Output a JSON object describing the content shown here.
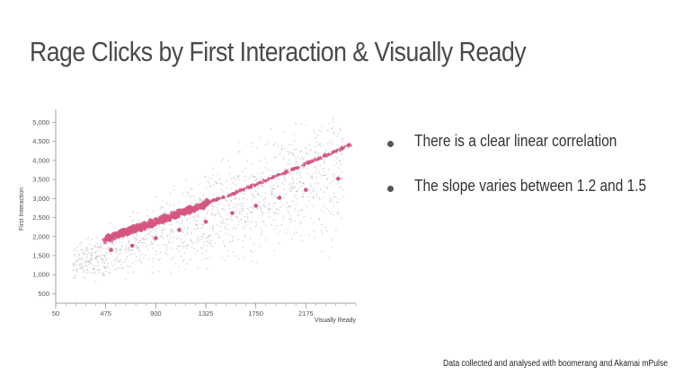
{
  "title": "Rage Clicks by First Interaction & Visually Ready",
  "bullets": [
    "There is a clear linear correlation",
    "The slope varies between 1.2 and 1.5"
  ],
  "footnote": "Data collected and analysed with boomerang and Akamai mPulse",
  "colors": {
    "points": "#d4567e",
    "scatter_gray": "#9a8e96",
    "axis": "#888888"
  },
  "chart_data": {
    "type": "scatter",
    "title": "",
    "xlabel": "Visually Ready",
    "ylabel": "First Interaction",
    "xlim": [
      50,
      2600
    ],
    "ylim": [
      250,
      5200
    ],
    "x_ticks": [
      50,
      475,
      900,
      1325,
      1750,
      2175
    ],
    "y_ticks": [
      500,
      1000,
      1500,
      2000,
      2500,
      3000,
      3500,
      4000,
      4500,
      5000
    ],
    "x_tick_labels": [
      "50",
      "475",
      "900",
      "1325",
      "1750",
      "2175"
    ],
    "y_tick_labels": [
      "500",
      "1,000",
      "1,500",
      "2,000",
      "2,500",
      "3,000",
      "3,500",
      "4,000",
      "4,500",
      "5,000"
    ],
    "grid": false,
    "series": [
      {
        "x": [
          520,
          700,
          900,
          1100,
          1325,
          1550,
          1750,
          1950,
          2175,
          2450
        ],
        "y": [
          1650,
          1760,
          1960,
          2170,
          2390,
          2620,
          2810,
          3020,
          3230,
          3520
        ]
      }
    ]
  }
}
